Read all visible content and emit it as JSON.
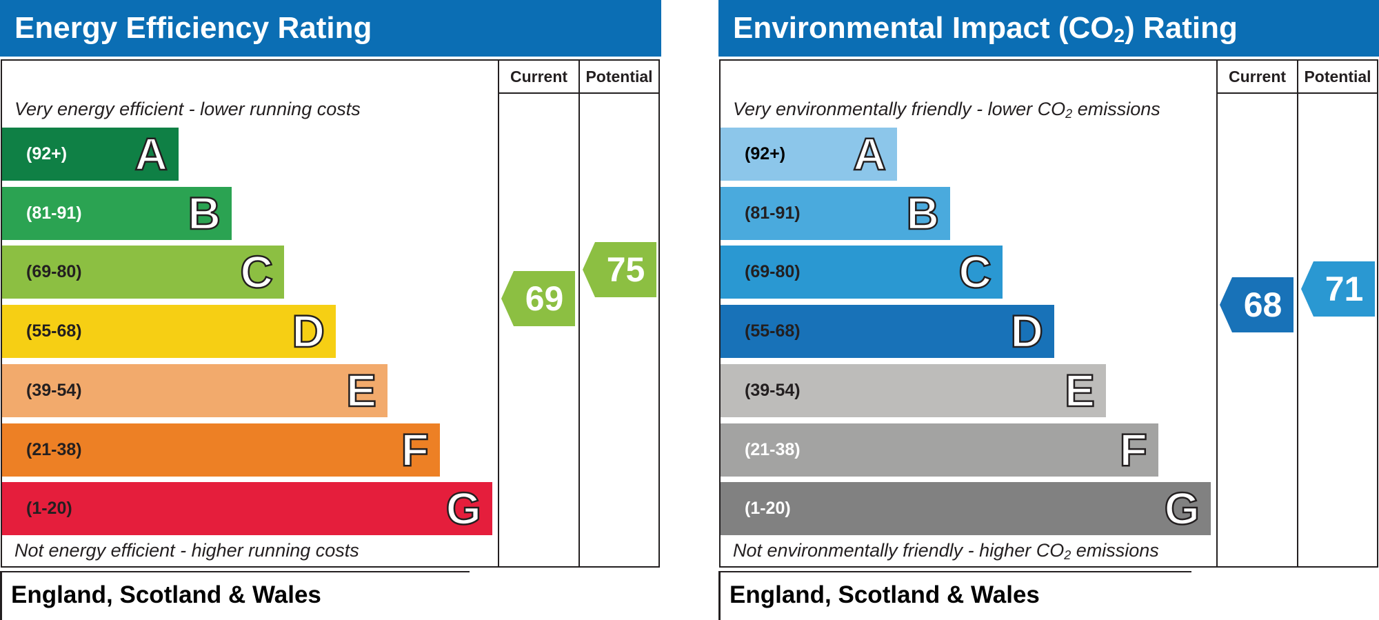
{
  "chart_data": [
    {
      "type": "bar",
      "title": "Energy Efficiency Rating",
      "columns": [
        "Current",
        "Potential"
      ],
      "top_caption": "Very energy efficient - lower running costs",
      "bottom_caption": "Not energy efficient - higher running costs",
      "region": "England, Scotland & Wales",
      "bands": [
        {
          "letter": "A",
          "range": "(92+)",
          "min": 92,
          "max": 100,
          "color": "#0f8045",
          "text_color": "#ffffff"
        },
        {
          "letter": "B",
          "range": "(81-91)",
          "min": 81,
          "max": 91,
          "color": "#2ba352",
          "text_color": "#ffffff"
        },
        {
          "letter": "C",
          "range": "(69-80)",
          "min": 69,
          "max": 80,
          "color": "#8cbf42",
          "text_color": "#231f20"
        },
        {
          "letter": "D",
          "range": "(55-68)",
          "min": 55,
          "max": 68,
          "color": "#f6cf14",
          "text_color": "#231f20"
        },
        {
          "letter": "E",
          "range": "(39-54)",
          "min": 39,
          "max": 54,
          "color": "#f2aa6c",
          "text_color": "#231f20"
        },
        {
          "letter": "F",
          "range": "(21-38)",
          "min": 21,
          "max": 38,
          "color": "#ed8025",
          "text_color": "#231f20"
        },
        {
          "letter": "G",
          "range": "(1-20)",
          "min": 1,
          "max": 20,
          "color": "#e51e3c",
          "text_color": "#231f20"
        }
      ],
      "ratings": {
        "current": {
          "value": 69,
          "band": "C",
          "color": "#8cbf42"
        },
        "potential": {
          "value": 75,
          "band": "C",
          "color": "#8cbf42"
        }
      }
    },
    {
      "type": "bar",
      "title": "Environmental Impact (CO",
      "title_sub": "2",
      "title_end": ") Rating",
      "columns": [
        "Current",
        "Potential"
      ],
      "top_caption": "Very environmentally friendly - lower CO",
      "top_caption_sub": "2",
      "top_caption_end": " emissions",
      "bottom_caption": "Not environmentally friendly - higher CO",
      "bottom_caption_sub": "2",
      "bottom_caption_end": " emissions",
      "region": "England, Scotland & Wales",
      "bands": [
        {
          "letter": "A",
          "range": "(92+)",
          "min": 92,
          "max": 100,
          "color": "#8cc6ea",
          "text_color": "#000000"
        },
        {
          "letter": "B",
          "range": "(81-91)",
          "min": 81,
          "max": 91,
          "color": "#4aaadd",
          "text_color": "#231f20"
        },
        {
          "letter": "C",
          "range": "(69-80)",
          "min": 69,
          "max": 80,
          "color": "#2a98d2",
          "text_color": "#231f20"
        },
        {
          "letter": "D",
          "range": "(55-68)",
          "min": 55,
          "max": 68,
          "color": "#1872b8",
          "text_color": "#231f20"
        },
        {
          "letter": "E",
          "range": "(39-54)",
          "min": 39,
          "max": 54,
          "color": "#bdbcba",
          "text_color": "#231f20"
        },
        {
          "letter": "F",
          "range": "(21-38)",
          "min": 21,
          "max": 38,
          "color": "#a3a3a2",
          "text_color": "#ffffff"
        },
        {
          "letter": "G",
          "range": "(1-20)",
          "min": 1,
          "max": 20,
          "color": "#818181",
          "text_color": "#ffffff"
        }
      ],
      "ratings": {
        "current": {
          "value": 68,
          "band": "D",
          "color": "#1872b8"
        },
        "potential": {
          "value": 71,
          "band": "C",
          "color": "#2a98d2"
        }
      }
    }
  ]
}
